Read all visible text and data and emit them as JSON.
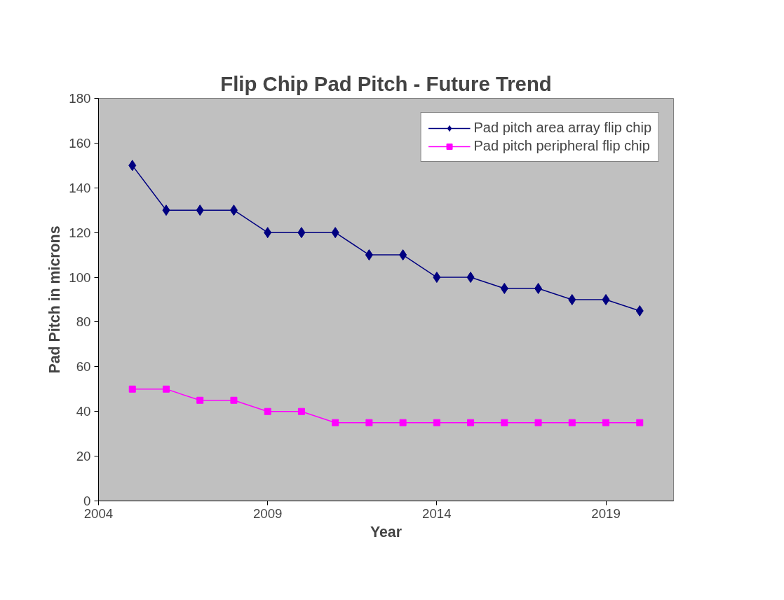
{
  "chart_data": {
    "type": "line",
    "title": "Flip Chip Pad Pitch - Future Trend",
    "xlabel": "Year",
    "ylabel": "Pad Pitch in microns",
    "x": [
      2005,
      2006,
      2007,
      2008,
      2009,
      2010,
      2011,
      2012,
      2013,
      2014,
      2015,
      2016,
      2017,
      2018,
      2019,
      2020
    ],
    "series": [
      {
        "name": "Pad pitch area array flip chip",
        "color": "#000080",
        "marker": "diamond",
        "values": [
          150,
          130,
          130,
          130,
          120,
          120,
          120,
          110,
          110,
          100,
          100,
          95,
          95,
          90,
          90,
          85
        ]
      },
      {
        "name": "Pad pitch peripheral flip chip",
        "color": "#ff00ff",
        "marker": "square",
        "values": [
          50,
          50,
          45,
          45,
          40,
          40,
          35,
          35,
          35,
          35,
          35,
          35,
          35,
          35,
          35,
          35
        ]
      }
    ],
    "xlim": [
      2004,
      2021
    ],
    "xticks": [
      2004,
      2009,
      2014,
      2019
    ],
    "ylim": [
      0,
      180
    ],
    "yticks": [
      0,
      20,
      40,
      60,
      80,
      100,
      120,
      140,
      160,
      180
    ],
    "grid": false,
    "legend": "top right",
    "line_style": "solid"
  }
}
